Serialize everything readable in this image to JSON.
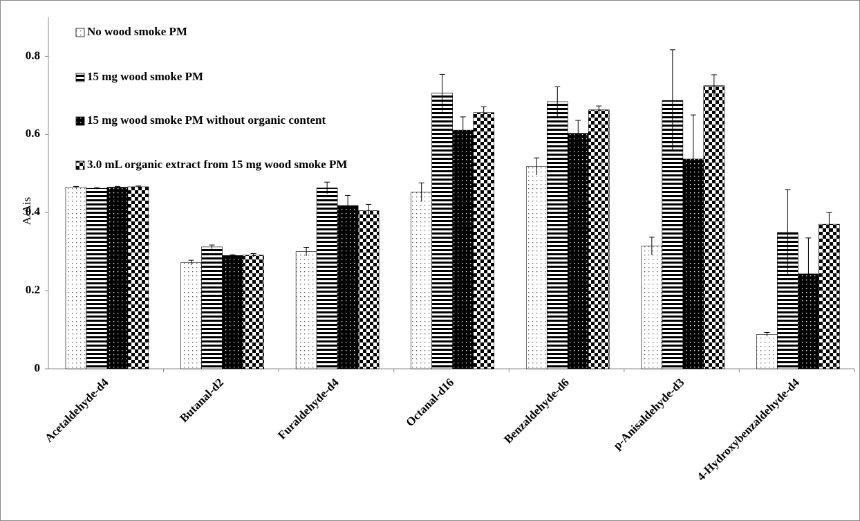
{
  "chart_data": {
    "type": "bar",
    "y_label": "A/Ais",
    "categories": [
      "Acetaldehyde-d4",
      "Butanal-d2",
      "Furaldehyde-d4",
      "Octanal-d16",
      "Benzaldehyde-d6",
      "p-Anisaldehyde-d3",
      "4-Hydroxybenzaldehyde-d4"
    ],
    "series": [
      {
        "name": "No wood smoke PM",
        "color": "#000000",
        "pattern": "dots",
        "values": [
          0.465,
          0.272,
          0.3,
          0.452,
          0.518,
          0.314,
          0.088
        ],
        "errors": [
          0.002,
          0.006,
          0.011,
          0.024,
          0.022,
          0.023,
          0.005
        ]
      },
      {
        "name": "15 mg wood smoke PM",
        "color": "#000000",
        "pattern": "hstripes",
        "values": [
          0.462,
          0.312,
          0.463,
          0.706,
          0.684,
          0.687,
          0.349
        ],
        "errors": [
          0.002,
          0.005,
          0.015,
          0.048,
          0.038,
          0.13,
          0.11
        ]
      },
      {
        "name": "15 mg wood smoke PM without organic content",
        "color": "#000000",
        "pattern": "darkdots",
        "values": [
          0.465,
          0.29,
          0.418,
          0.611,
          0.603,
          0.537,
          0.243
        ],
        "errors": [
          0.002,
          0.002,
          0.026,
          0.034,
          0.033,
          0.113,
          0.092
        ]
      },
      {
        "name": "3.0 mL organic extract from 15 mg wood smoke PM",
        "color": "#000000",
        "pattern": "checker",
        "values": [
          0.466,
          0.291,
          0.405,
          0.656,
          0.663,
          0.725,
          0.37
        ],
        "errors": [
          0.002,
          0.004,
          0.016,
          0.015,
          0.01,
          0.028,
          0.03
        ]
      }
    ],
    "ylim": [
      0,
      0.9
    ],
    "yticks": [
      0,
      0.2,
      0.4,
      0.6,
      0.8
    ],
    "grid": false
  }
}
